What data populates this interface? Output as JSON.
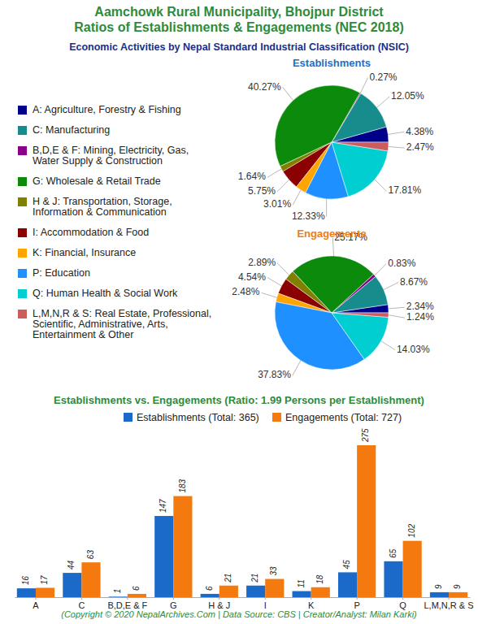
{
  "header": {
    "title": [
      "Aamchowk Rural Municipality, Bhojpur District",
      "Ratios of Establishments & Engagements (NEC 2018)"
    ],
    "subtitle": "Economic Activities by Nepal Standard Industrial Classification (NSIC)"
  },
  "chart_data": [
    {
      "type": "pie",
      "title": "Establishments",
      "categories": [
        "A: Agriculture, Forestry & Fishing",
        "C: Manufacturing",
        "B,D,E & F: Mining, Electricity, Gas, Water Supply & Construction",
        "G: Wholesale & Retail Trade",
        "H & J: Transportation, Storage, Information & Communication",
        "I: Accommodation & Food",
        "K: Financial, Insurance",
        "P: Education",
        "Q: Human Health & Social Work",
        "L,M,N,R & S: Real Estate, Professional, Scientific, Administrative, Arts, Entertainment & Other"
      ],
      "values": [
        4.38,
        12.05,
        0.27,
        40.27,
        1.64,
        5.75,
        3.01,
        12.33,
        17.81,
        2.47
      ],
      "value_labels": [
        "4.38%",
        "12.05%",
        "0.27%",
        "40.27%",
        "1.64%",
        "5.75%",
        "3.01%",
        "12.33%",
        "17.81%",
        "2.47%"
      ],
      "colors": [
        "#00008b",
        "#168c8c",
        "#8b008b",
        "#0b8a0b",
        "#808000",
        "#8b0000",
        "#ffa500",
        "#1e90ff",
        "#00ced1",
        "#cd5c5c"
      ],
      "data_labels": true,
      "legend": "left"
    },
    {
      "type": "pie",
      "title": "Engagements",
      "categories": [
        "A: Agriculture, Forestry & Fishing",
        "C: Manufacturing",
        "B,D,E & F: Mining, Electricity, Gas, Water Supply & Construction",
        "G: Wholesale & Retail Trade",
        "H & J: Transportation, Storage, Information & Communication",
        "I: Accommodation & Food",
        "K: Financial, Insurance",
        "P: Education",
        "Q: Human Health & Social Work",
        "L,M,N,R & S: Real Estate, Professional, Scientific, Administrative, Arts, Entertainment & Other"
      ],
      "values": [
        2.34,
        8.67,
        0.83,
        25.17,
        2.89,
        4.54,
        2.48,
        37.83,
        14.03,
        1.24
      ],
      "value_labels": [
        "2.34%",
        "8.67%",
        "0.83%",
        "25.17%",
        "2.89%",
        "4.54%",
        "2.48%",
        "37.83%",
        "14.03%",
        "1.24%"
      ],
      "colors": [
        "#00008b",
        "#168c8c",
        "#8b008b",
        "#0b8a0b",
        "#808000",
        "#8b0000",
        "#ffa500",
        "#1e90ff",
        "#00ced1",
        "#cd5c5c"
      ],
      "data_labels": true
    },
    {
      "type": "bar",
      "title": "Establishments vs. Engagements (Ratio: 1.99 Persons per Establishment)",
      "categories": [
        "A",
        "C",
        "B,D,E & F",
        "G",
        "H & J",
        "I",
        "K",
        "P",
        "Q",
        "L,M,N,R & S"
      ],
      "series": [
        {
          "name": "Establishments (Total: 365)",
          "color": "#1b6ac9",
          "values": [
            16,
            44,
            1,
            147,
            6,
            21,
            11,
            45,
            65,
            9
          ]
        },
        {
          "name": "Engagements (Total: 727)",
          "color": "#f47a10",
          "values": [
            17,
            63,
            6,
            183,
            21,
            33,
            18,
            275,
            102,
            9
          ]
        }
      ],
      "ylim": [
        0,
        275
      ],
      "data_labels": true,
      "tick_labels": "x",
      "legend": "top"
    }
  ],
  "footer": "(Copyright © 2020 NepalArchives.Com | Data Source: CBS | Creator/Analyst: Milan Karki)"
}
